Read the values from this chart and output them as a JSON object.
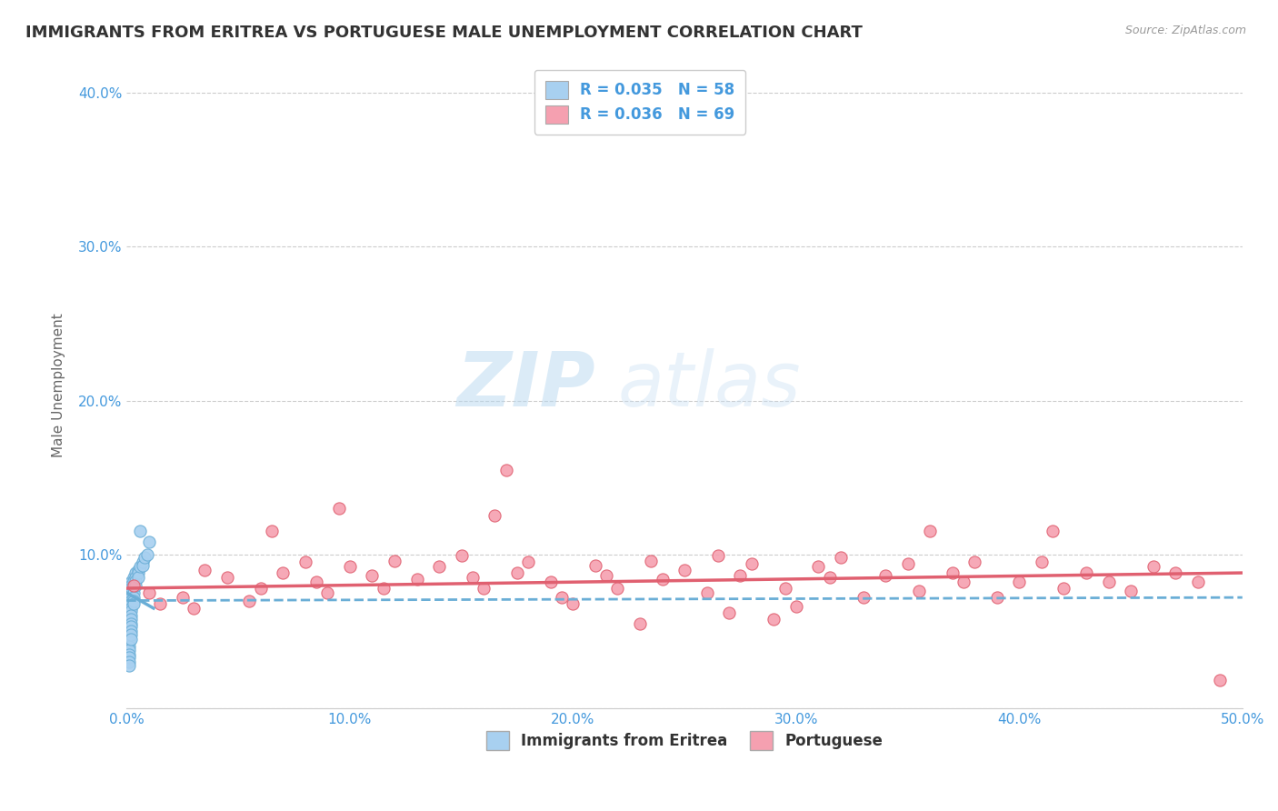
{
  "title": "IMMIGRANTS FROM ERITREA VS PORTUGUESE MALE UNEMPLOYMENT CORRELATION CHART",
  "source": "Source: ZipAtlas.com",
  "ylabel": "Male Unemployment",
  "xlim": [
    0.0,
    0.5
  ],
  "ylim": [
    0.0,
    0.42
  ],
  "xticks": [
    0.0,
    0.1,
    0.2,
    0.3,
    0.4,
    0.5
  ],
  "yticks": [
    0.0,
    0.1,
    0.2,
    0.3,
    0.4
  ],
  "xticklabels": [
    "0.0%",
    "10.0%",
    "20.0%",
    "30.0%",
    "40.0%",
    "50.0%"
  ],
  "yticklabels": [
    "",
    "10.0%",
    "20.0%",
    "30.0%",
    "40.0%"
  ],
  "legend_r1": "R = 0.035",
  "legend_n1": "N = 58",
  "legend_r2": "R = 0.036",
  "legend_n2": "N = 69",
  "legend_label1": "Immigrants from Eritrea",
  "legend_label2": "Portuguese",
  "color_blue": "#a8d0f0",
  "color_blue_line": "#6aaed6",
  "color_pink": "#f5a0b0",
  "color_pink_line": "#e06070",
  "color_text_blue": "#4499dd",
  "background_color": "#ffffff",
  "grid_color": "#cccccc",
  "eritrea_x": [
    0.001,
    0.001,
    0.001,
    0.001,
    0.001,
    0.001,
    0.001,
    0.001,
    0.001,
    0.001,
    0.001,
    0.001,
    0.001,
    0.001,
    0.001,
    0.001,
    0.001,
    0.001,
    0.001,
    0.001,
    0.002,
    0.002,
    0.002,
    0.002,
    0.002,
    0.002,
    0.002,
    0.002,
    0.002,
    0.002,
    0.002,
    0.002,
    0.002,
    0.002,
    0.002,
    0.002,
    0.003,
    0.003,
    0.003,
    0.003,
    0.003,
    0.003,
    0.003,
    0.003,
    0.004,
    0.004,
    0.004,
    0.004,
    0.005,
    0.005,
    0.005,
    0.006,
    0.006,
    0.007,
    0.007,
    0.008,
    0.009,
    0.01
  ],
  "eritrea_y": [
    0.075,
    0.073,
    0.07,
    0.068,
    0.065,
    0.063,
    0.06,
    0.058,
    0.055,
    0.053,
    0.05,
    0.048,
    0.045,
    0.043,
    0.04,
    0.038,
    0.035,
    0.033,
    0.03,
    0.028,
    0.082,
    0.08,
    0.078,
    0.075,
    0.072,
    0.07,
    0.068,
    0.065,
    0.063,
    0.06,
    0.058,
    0.055,
    0.053,
    0.05,
    0.048,
    0.045,
    0.085,
    0.083,
    0.08,
    0.078,
    0.075,
    0.072,
    0.07,
    0.068,
    0.088,
    0.085,
    0.083,
    0.08,
    0.09,
    0.088,
    0.085,
    0.115,
    0.092,
    0.095,
    0.093,
    0.098,
    0.1,
    0.108
  ],
  "portuguese_x": [
    0.003,
    0.01,
    0.015,
    0.025,
    0.03,
    0.035,
    0.045,
    0.055,
    0.06,
    0.065,
    0.07,
    0.08,
    0.085,
    0.09,
    0.095,
    0.1,
    0.11,
    0.115,
    0.12,
    0.13,
    0.14,
    0.15,
    0.155,
    0.16,
    0.165,
    0.17,
    0.175,
    0.18,
    0.19,
    0.195,
    0.2,
    0.21,
    0.215,
    0.22,
    0.23,
    0.235,
    0.24,
    0.25,
    0.26,
    0.265,
    0.27,
    0.275,
    0.28,
    0.29,
    0.295,
    0.3,
    0.31,
    0.315,
    0.32,
    0.33,
    0.34,
    0.35,
    0.355,
    0.36,
    0.37,
    0.375,
    0.38,
    0.39,
    0.4,
    0.41,
    0.415,
    0.42,
    0.43,
    0.44,
    0.45,
    0.46,
    0.47,
    0.48,
    0.49
  ],
  "portuguese_y": [
    0.08,
    0.075,
    0.068,
    0.072,
    0.065,
    0.09,
    0.085,
    0.07,
    0.078,
    0.115,
    0.088,
    0.095,
    0.082,
    0.075,
    0.13,
    0.092,
    0.086,
    0.078,
    0.096,
    0.084,
    0.092,
    0.099,
    0.085,
    0.078,
    0.125,
    0.155,
    0.088,
    0.095,
    0.082,
    0.072,
    0.068,
    0.093,
    0.086,
    0.078,
    0.055,
    0.096,
    0.084,
    0.09,
    0.075,
    0.099,
    0.062,
    0.086,
    0.094,
    0.058,
    0.078,
    0.066,
    0.092,
    0.085,
    0.098,
    0.072,
    0.086,
    0.094,
    0.076,
    0.115,
    0.088,
    0.082,
    0.095,
    0.072,
    0.082,
    0.095,
    0.115,
    0.078,
    0.088,
    0.082,
    0.076,
    0.092,
    0.088,
    0.082,
    0.018
  ],
  "eritrea_trendline": [
    0.0,
    0.5,
    0.07,
    0.072
  ],
  "portuguese_trendline": [
    0.0,
    0.5,
    0.078,
    0.088
  ]
}
